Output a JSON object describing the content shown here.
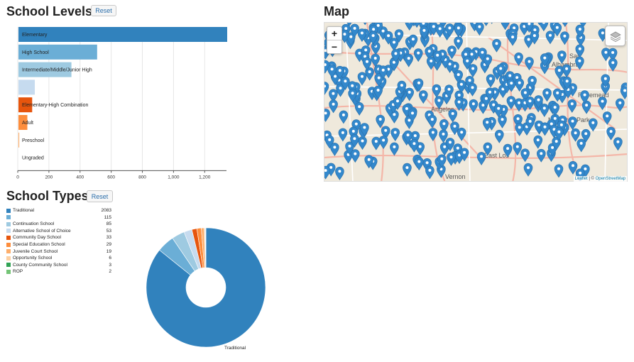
{
  "levels_section": {
    "title": "School Levels",
    "reset_label": "Reset"
  },
  "types_section": {
    "title": "School Types",
    "reset_label": "Reset"
  },
  "map_section": {
    "title": "Map",
    "zoom_in": "+",
    "zoom_out": "−",
    "attribution_leaflet": "Leaflet",
    "attribution_sep": " | © ",
    "attribution_osm": "OpenStreetMap",
    "place_labels": [
      "San",
      "Alhambra",
      "Monterey Park",
      "Angeles",
      "Rosemead",
      "East Los",
      "Vernon"
    ],
    "marker_color": "#3388cc"
  },
  "chart_data": [
    {
      "type": "bar",
      "orientation": "horizontal",
      "categories": [
        "Elementary",
        "High School",
        "Intermediate/Middle/Junior High",
        "",
        "Elementary-High Combination",
        "Adult",
        "Preschool",
        "Ungraded"
      ],
      "values": [
        1340,
        505,
        340,
        105,
        88,
        57,
        5,
        0
      ],
      "colors": [
        "#3182bd",
        "#6baed6",
        "#9ecae1",
        "#c6dbef",
        "#e6550d",
        "#fd8d3c",
        "#fdae6b",
        "#fdd0a2"
      ],
      "xticks": [
        0,
        200,
        400,
        600,
        800,
        1000,
        1200
      ],
      "xtick_labels": [
        "0",
        "200",
        "400",
        "600",
        "800",
        "1,000",
        "1,200"
      ],
      "xlim": [
        0,
        1340
      ],
      "grid": true
    },
    {
      "type": "pie",
      "donut": true,
      "labels": [
        "Traditional",
        "",
        "Continuation School",
        "Alternative School of Choice",
        "Community Day School",
        "Special Education School",
        "Juvenile Court School",
        "Opportunity School",
        "County Community School",
        "ROP"
      ],
      "counts": [
        "2083",
        "115",
        "85",
        "53",
        "33",
        "29",
        "19",
        "6",
        "3",
        "2"
      ],
      "values": [
        2083,
        115,
        85,
        53,
        33,
        29,
        19,
        6,
        3,
        2
      ],
      "colors": [
        "#3182bd",
        "#6baed6",
        "#9ecae1",
        "#c6dbef",
        "#e6550d",
        "#fd8d3c",
        "#fdae6b",
        "#fdd0a2",
        "#31a354",
        "#74c476"
      ],
      "slice_label": "Traditional"
    }
  ]
}
